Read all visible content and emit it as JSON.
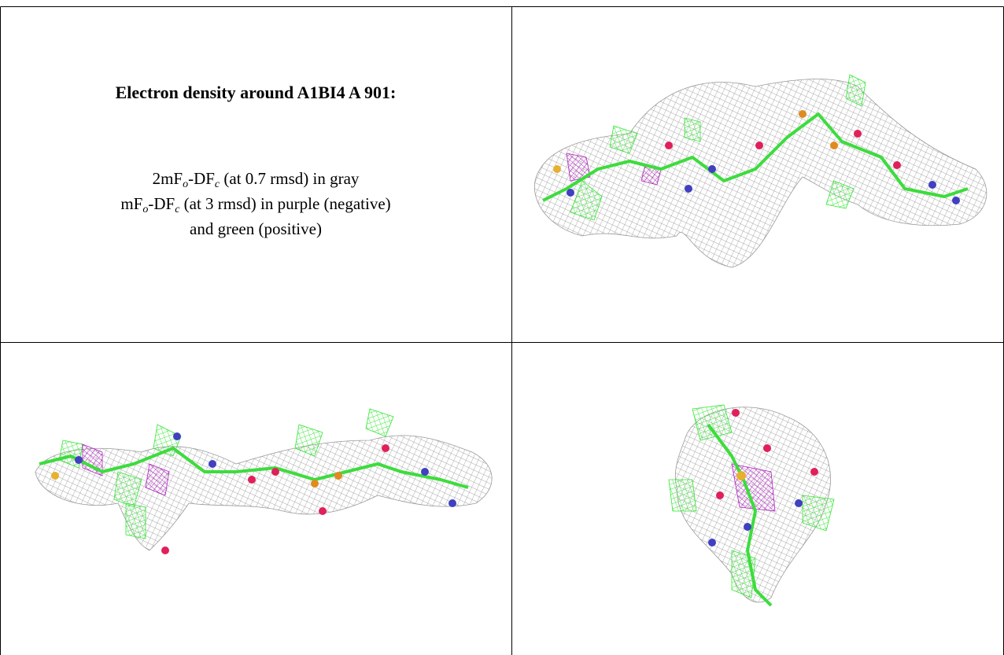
{
  "caption": {
    "title": "Electron density around A1BI4 A 901:",
    "lines": [
      [
        "2mF",
        "o",
        "-DF",
        "c",
        " (at 0.7 rmsd) in gray"
      ],
      [
        "mF",
        "o",
        "-DF",
        "c",
        " (at 3 rmsd) in purple (negative)"
      ],
      [
        "and green (positive)"
      ]
    ]
  }
}
